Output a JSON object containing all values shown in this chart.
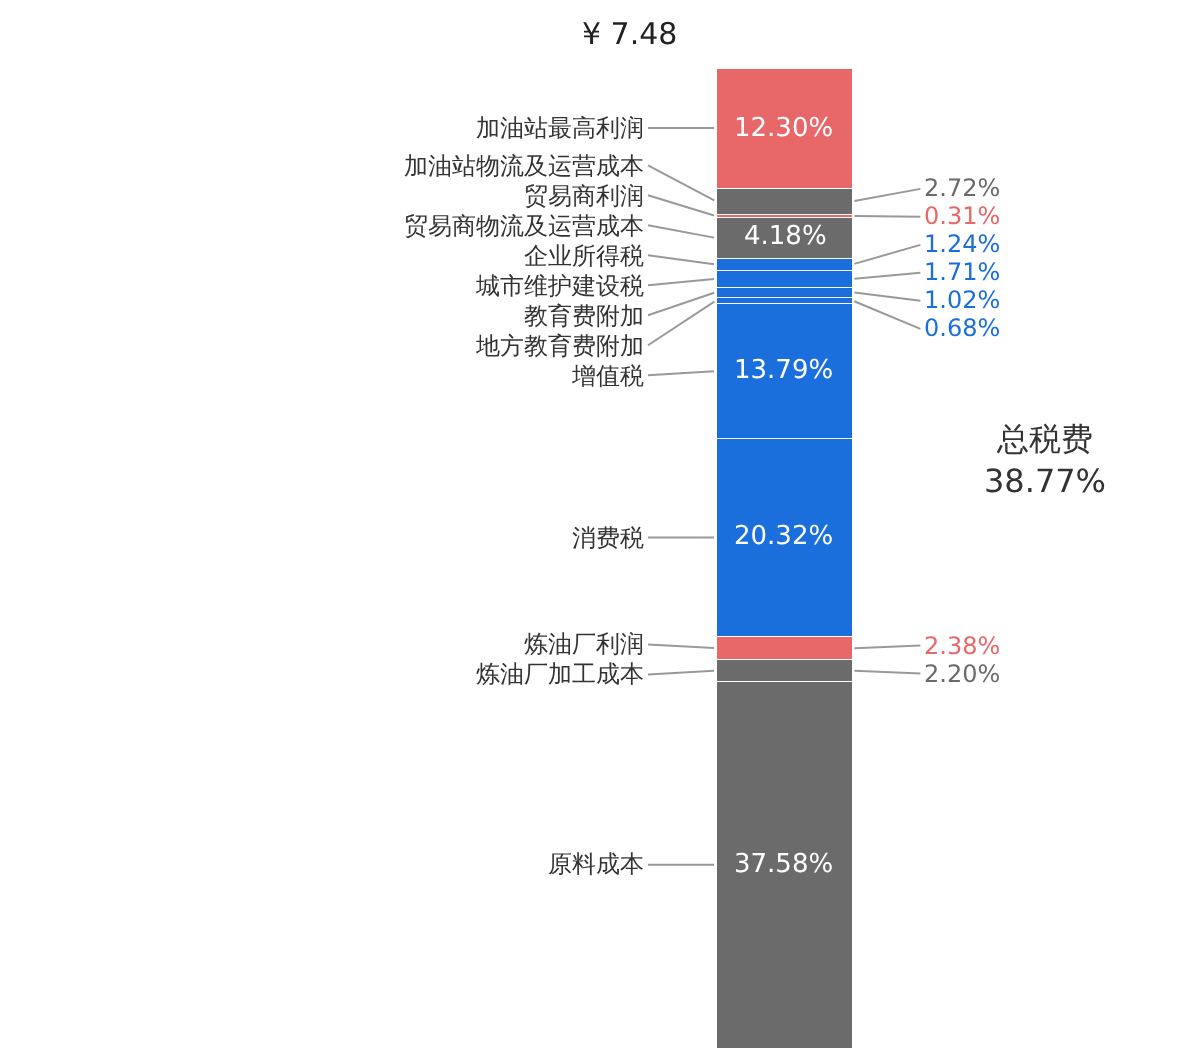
{
  "chart_data": {
    "type": "bar",
    "stacked": true,
    "tick_labels": false,
    "grid": false,
    "legend": false,
    "categories": [
      null
    ],
    "series": [
      {
        "name": "原料成本",
        "color": "#6b6b6b",
        "values": [
          37.58
        ],
        "value_labels": [
          "37.58%"
        ]
      },
      {
        "name": "炼油厂加工成本",
        "color": "#6b6b6b",
        "values": [
          2.2
        ],
        "value_labels": [
          "2.20%"
        ]
      },
      {
        "name": "炼油厂利润",
        "color": "#e8686a",
        "values": [
          2.38
        ],
        "value_labels": [
          "2.38%"
        ]
      },
      {
        "name": "消费税",
        "color": "#1a6fdc",
        "values": [
          20.32
        ],
        "value_labels": [
          "20.32%"
        ]
      },
      {
        "name": "增值税",
        "color": "#1a6fdc",
        "values": [
          13.79
        ],
        "value_labels": [
          "13.79%"
        ]
      },
      {
        "name": "地方教育费附加",
        "color": "#1a6fdc",
        "values": [
          0.68
        ],
        "value_labels": [
          "0.68%"
        ]
      },
      {
        "name": "教育费附加",
        "color": "#1a6fdc",
        "values": [
          1.02
        ],
        "value_labels": [
          "1.02%"
        ]
      },
      {
        "name": "城市维护建设税",
        "color": "#1a6fdc",
        "values": [
          1.71
        ],
        "value_labels": [
          "1.71%"
        ]
      },
      {
        "name": "企业所得税",
        "color": "#1a6fdc",
        "values": [
          1.24
        ],
        "value_labels": [
          "1.24%"
        ]
      },
      {
        "name": "贸易商物流及运营成本",
        "color": "#6b6b6b",
        "values": [
          4.18
        ],
        "value_labels": [
          "4.18%"
        ]
      },
      {
        "name": "贸易商利润",
        "color": "#e8686a",
        "values": [
          0.31
        ],
        "value_labels": [
          "0.31%"
        ]
      },
      {
        "name": "加油站物流及运营成本",
        "color": "#6b6b6b",
        "values": [
          2.72
        ],
        "value_labels": [
          "2.72%"
        ]
      },
      {
        "name": "加油站最高利润",
        "color": "#e8686a",
        "values": [
          12.3
        ],
        "value_labels": [
          "12.30%"
        ]
      }
    ],
    "annotations": [
      "¥ 7.48",
      "总税费\n38.77%"
    ]
  }
}
